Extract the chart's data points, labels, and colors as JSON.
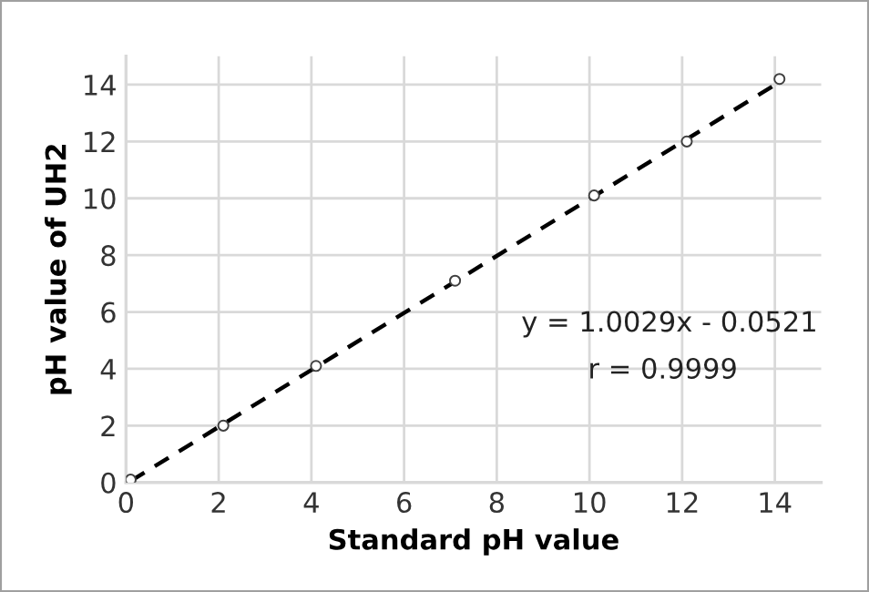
{
  "chart_data": {
    "type": "scatter",
    "xlabel": "Standard pH value",
    "ylabel": "pH value of UH2",
    "xlim": [
      0,
      15
    ],
    "ylim": [
      0,
      15
    ],
    "xticks": [
      0,
      2,
      4,
      6,
      8,
      10,
      12,
      14
    ],
    "yticks": [
      0,
      2,
      4,
      6,
      8,
      10,
      12,
      14
    ],
    "grid": true,
    "legend": false,
    "series": [
      {
        "marker": "circle",
        "color": "#404040",
        "x": [
          0.1,
          2.1,
          4.1,
          7.1,
          10.1,
          12.1,
          14.1
        ],
        "values": [
          0.1,
          2.0,
          4.1,
          7.1,
          10.1,
          12.0,
          14.2
        ]
      },
      {
        "type": "line",
        "marker": "none",
        "line_style": "dashed",
        "color": "#000000",
        "x": [
          0.1,
          14.1
        ],
        "values": [
          0.05,
          14.09
        ]
      }
    ],
    "annotations": [
      "y = 1.0029x - 0.0521",
      "r = 0.9999"
    ]
  }
}
